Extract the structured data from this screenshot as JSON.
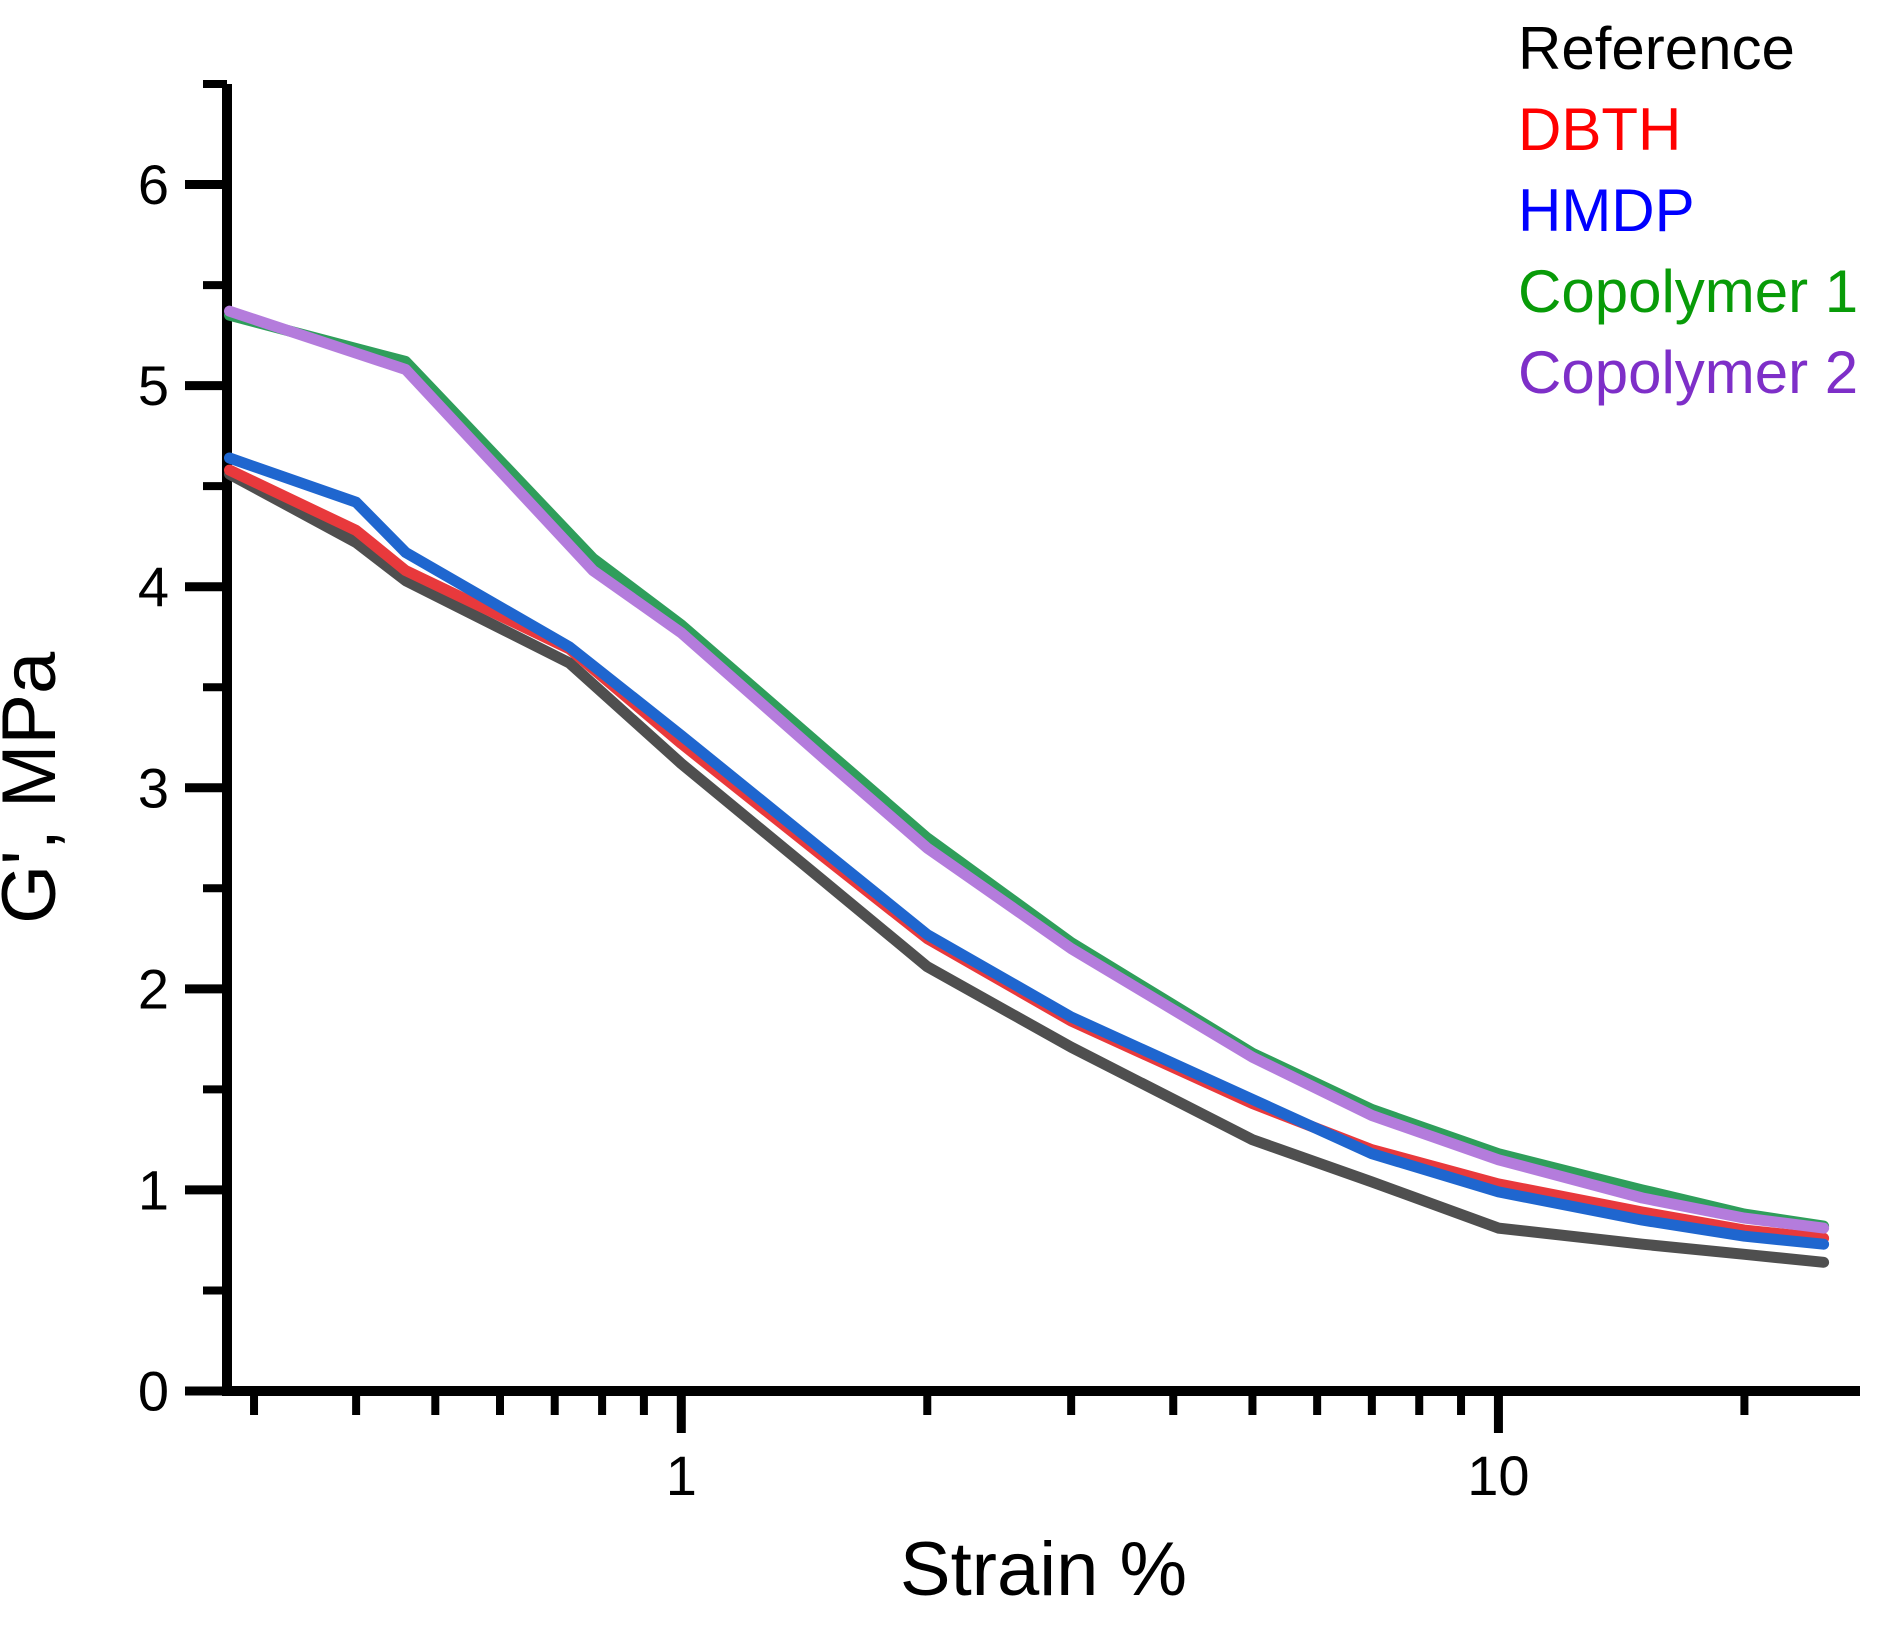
{
  "page": {
    "background": "#FFFFFF"
  },
  "legend": {
    "position": "top-right",
    "entries": [
      {
        "label": "Reference",
        "color": "#000000"
      },
      {
        "label": "DBTH",
        "color": "#FF0000"
      },
      {
        "label": "HMDP",
        "color": "#0000FF"
      },
      {
        "label": "Copolymer 1",
        "color": "#089B08"
      },
      {
        "label": "Copolymer 2",
        "color": "#7E2FC8"
      }
    ]
  },
  "chart_data": {
    "type": "line",
    "title": "",
    "xlabel": "Strain %",
    "ylabel": "G', MPa",
    "x_scale": "log",
    "y_scale": "linear",
    "xlim": [
      0.278,
      27.7
    ],
    "ylim": [
      0,
      6.5
    ],
    "x_major_ticks": [
      1,
      10
    ],
    "x_major_tick_labels": [
      "1",
      "10"
    ],
    "x_minor_ticks": [
      0.3,
      0.4,
      0.5,
      0.6,
      0.7,
      0.8,
      0.9,
      2,
      3,
      4,
      5,
      6,
      7,
      8,
      9,
      20
    ],
    "y_major_ticks": [
      0,
      1,
      2,
      3,
      4,
      5,
      6
    ],
    "y_major_tick_labels": [
      "0",
      "1",
      "2",
      "3",
      "4",
      "5",
      "6"
    ],
    "y_minor_ticks": [
      0.5,
      1.5,
      2.5,
      3.5,
      4.5,
      5.5,
      6.5
    ],
    "grid": false,
    "legend_position": "top-right",
    "axis_color": "#000000",
    "series": [
      {
        "name": "Reference",
        "color": "#4F4F4F",
        "line_width": 11,
        "points": [
          [
            0.28,
            4.56
          ],
          [
            0.4,
            4.22
          ],
          [
            0.46,
            4.03
          ],
          [
            0.73,
            3.62
          ],
          [
            1.0,
            3.12
          ],
          [
            1.5,
            2.53
          ],
          [
            2,
            2.11
          ],
          [
            3,
            1.71
          ],
          [
            5,
            1.25
          ],
          [
            7,
            1.04
          ],
          [
            10,
            0.81
          ],
          [
            15,
            0.73
          ],
          [
            20,
            0.68
          ],
          [
            25,
            0.64
          ]
        ]
      },
      {
        "name": "DBTH",
        "color": "#E8393C",
        "line_width": 11,
        "points": [
          [
            0.28,
            4.58
          ],
          [
            0.4,
            4.28
          ],
          [
            0.46,
            4.08
          ],
          [
            0.73,
            3.69
          ],
          [
            1.0,
            3.22
          ],
          [
            1.5,
            2.65
          ],
          [
            2,
            2.25
          ],
          [
            3,
            1.84
          ],
          [
            5,
            1.43
          ],
          [
            7,
            1.2
          ],
          [
            10,
            1.03
          ],
          [
            15,
            0.89
          ],
          [
            20,
            0.8
          ],
          [
            25,
            0.76
          ]
        ]
      },
      {
        "name": "HMDP",
        "color": "#1F66CF",
        "line_width": 11,
        "points": [
          [
            0.28,
            4.64
          ],
          [
            0.4,
            4.42
          ],
          [
            0.46,
            4.17
          ],
          [
            0.73,
            3.7
          ],
          [
            1.0,
            3.26
          ],
          [
            1.5,
            2.68
          ],
          [
            2,
            2.27
          ],
          [
            3,
            1.86
          ],
          [
            5,
            1.45
          ],
          [
            7,
            1.18
          ],
          [
            10,
            0.99
          ],
          [
            15,
            0.85
          ],
          [
            20,
            0.77
          ],
          [
            25,
            0.73
          ]
        ]
      },
      {
        "name": "Copolymer 1",
        "color": "#2F9E5B",
        "line_width": 11,
        "points": [
          [
            0.28,
            5.35
          ],
          [
            0.46,
            5.12
          ],
          [
            0.78,
            4.14
          ],
          [
            1.0,
            3.81
          ],
          [
            1.5,
            3.19
          ],
          [
            2,
            2.75
          ],
          [
            3,
            2.23
          ],
          [
            5,
            1.68
          ],
          [
            7,
            1.4
          ],
          [
            10,
            1.18
          ],
          [
            15,
            1.0
          ],
          [
            20,
            0.88
          ],
          [
            25,
            0.82
          ]
        ]
      },
      {
        "name": "Copolymer 2",
        "color": "#B47CDC",
        "line_width": 11,
        "points": [
          [
            0.28,
            5.37
          ],
          [
            0.46,
            5.08
          ],
          [
            0.78,
            4.08
          ],
          [
            1.0,
            3.77
          ],
          [
            1.5,
            3.14
          ],
          [
            2,
            2.7
          ],
          [
            3,
            2.2
          ],
          [
            5,
            1.66
          ],
          [
            7,
            1.37
          ],
          [
            10,
            1.15
          ],
          [
            15,
            0.96
          ],
          [
            20,
            0.86
          ],
          [
            25,
            0.81
          ]
        ]
      }
    ]
  }
}
